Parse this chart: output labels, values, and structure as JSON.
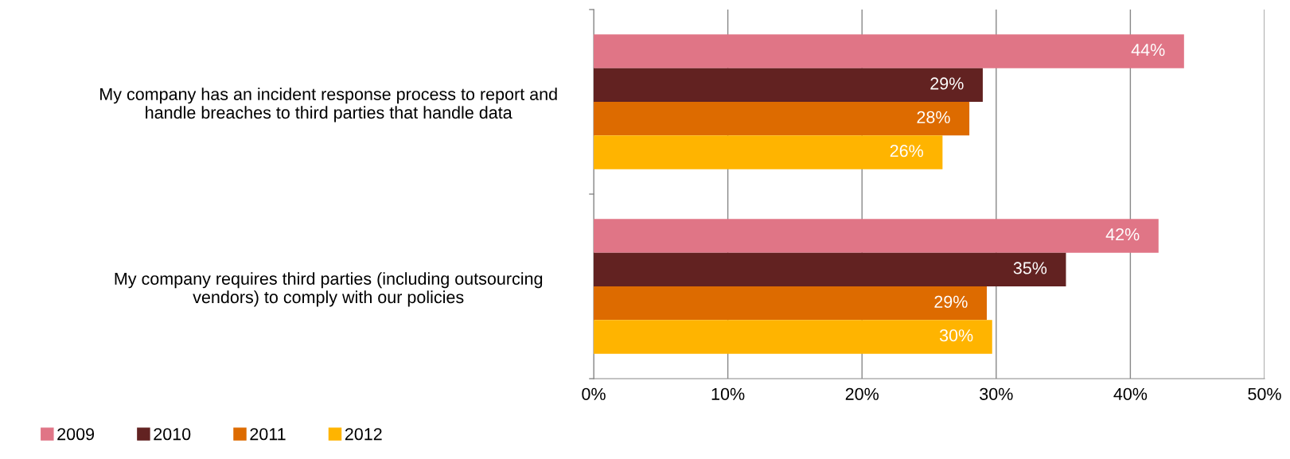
{
  "chart_data": {
    "type": "bar",
    "orientation": "horizontal",
    "categories": [
      "My company has an incident response process to report and\nhandle breaches to third parties that handle data",
      "My company requires third parties (including outsourcing\nvendors) to comply with our policies"
    ],
    "series": [
      {
        "name": "2009",
        "color": "#e07586",
        "values": [
          44.0,
          42.1
        ],
        "value_labels": [
          "44%",
          "42%"
        ]
      },
      {
        "name": "2010",
        "color": "#622221",
        "values": [
          29.0,
          35.2
        ],
        "value_labels": [
          "29%",
          "35%"
        ]
      },
      {
        "name": "2011",
        "color": "#dd6b00",
        "values": [
          28.0,
          29.3
        ],
        "value_labels": [
          "28%",
          "29%"
        ]
      },
      {
        "name": "2012",
        "color": "#ffb400",
        "values": [
          26.0,
          29.7
        ],
        "value_labels": [
          "26%",
          "30%"
        ]
      }
    ],
    "xlim": [
      0,
      50
    ],
    "xticks": [
      {
        "value": 0,
        "label": "0%"
      },
      {
        "value": 10,
        "label": "10%"
      },
      {
        "value": 20,
        "label": "20%"
      },
      {
        "value": 30,
        "label": "30%"
      },
      {
        "value": 40,
        "label": "40%"
      },
      {
        "value": 50,
        "label": "50%"
      }
    ],
    "grid": "x",
    "legend": "bottom left"
  }
}
